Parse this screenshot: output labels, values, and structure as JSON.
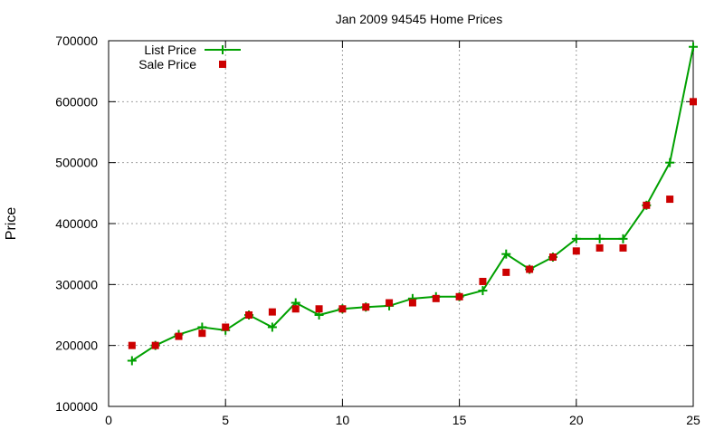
{
  "chart_data": {
    "type": "line",
    "title": "Jan 2009 94545 Home Prices",
    "xlabel": "",
    "ylabel": "Price",
    "xlim": [
      0,
      25
    ],
    "ylim": [
      100000,
      700000
    ],
    "x_ticks": [
      0,
      5,
      10,
      15,
      20,
      25
    ],
    "y_ticks": [
      100000,
      200000,
      300000,
      400000,
      500000,
      600000,
      700000
    ],
    "grid": true,
    "legend_position": "top-left",
    "series": [
      {
        "name": "List Price",
        "style": "line-with-plus-markers",
        "color": "#00a000",
        "x": [
          1,
          2,
          3,
          4,
          5,
          6,
          7,
          8,
          9,
          10,
          11,
          12,
          13,
          14,
          15,
          16,
          17,
          18,
          19,
          20,
          21,
          22,
          23,
          24,
          25
        ],
        "y": [
          175000,
          200000,
          218000,
          230000,
          225000,
          250000,
          230000,
          270000,
          250000,
          260000,
          263000,
          265000,
          277000,
          280000,
          280000,
          290000,
          350000,
          325000,
          345000,
          375000,
          375000,
          375000,
          430000,
          500000,
          690000
        ]
      },
      {
        "name": "Sale Price",
        "style": "square-markers",
        "color": "#cc0000",
        "x": [
          1,
          2,
          3,
          4,
          5,
          6,
          7,
          8,
          9,
          10,
          11,
          12,
          13,
          14,
          15,
          16,
          17,
          18,
          19,
          20,
          21,
          22,
          23,
          24,
          25
        ],
        "y": [
          200000,
          200000,
          215000,
          220000,
          230000,
          250000,
          255000,
          260000,
          260000,
          260000,
          263000,
          270000,
          270000,
          277000,
          280000,
          305000,
          320000,
          325000,
          345000,
          355000,
          360000,
          360000,
          430000,
          440000,
          600000
        ]
      }
    ]
  }
}
